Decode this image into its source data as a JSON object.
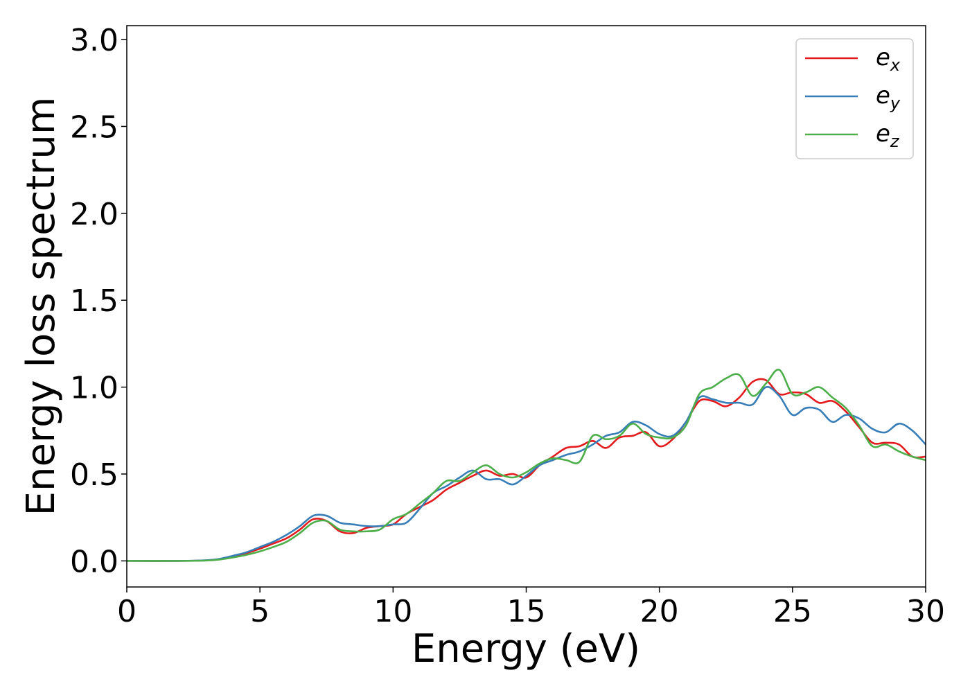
{
  "chart_data": {
    "type": "line",
    "xlabel": "Energy (eV)",
    "ylabel": "Energy loss spectrum",
    "xlim": [
      0,
      30
    ],
    "ylim": [
      -0.15,
      3.08
    ],
    "xticks": [
      0,
      5,
      10,
      15,
      20,
      25,
      30
    ],
    "xtick_labels": [
      "0",
      "5",
      "10",
      "15",
      "20",
      "25",
      "30"
    ],
    "yticks": [
      0.0,
      0.5,
      1.0,
      1.5,
      2.0,
      2.5,
      3.0
    ],
    "ytick_labels": [
      "0.0",
      "0.5",
      "1.0",
      "1.5",
      "2.0",
      "2.5",
      "3.0"
    ],
    "grid": false,
    "legend_position": "top-right",
    "series": [
      {
        "name": "e",
        "subscript": "x",
        "color": "#e41a1c",
        "x": [
          0,
          2,
          3,
          3.5,
          4,
          4.5,
          5,
          5.5,
          6,
          6.5,
          7,
          7.5,
          8,
          8.5,
          9,
          9.5,
          10,
          10.5,
          11,
          11.5,
          12,
          12.5,
          13,
          13.5,
          14,
          14.5,
          15,
          15.5,
          16,
          16.5,
          17,
          17.5,
          18,
          18.5,
          19,
          19.5,
          20,
          20.5,
          21,
          21.5,
          22,
          22.5,
          23,
          23.5,
          24,
          24.5,
          25,
          25.5,
          26,
          26.5,
          27,
          27.5,
          28,
          28.5,
          29,
          29.5,
          30
        ],
        "values": [
          0.0,
          0.0,
          0.003,
          0.01,
          0.025,
          0.045,
          0.07,
          0.1,
          0.13,
          0.18,
          0.24,
          0.23,
          0.17,
          0.16,
          0.19,
          0.2,
          0.21,
          0.27,
          0.31,
          0.35,
          0.41,
          0.45,
          0.49,
          0.52,
          0.49,
          0.5,
          0.48,
          0.55,
          0.6,
          0.65,
          0.66,
          0.69,
          0.65,
          0.71,
          0.72,
          0.74,
          0.66,
          0.7,
          0.8,
          0.92,
          0.92,
          0.89,
          0.94,
          1.03,
          1.04,
          0.96,
          0.97,
          0.96,
          0.91,
          0.92,
          0.86,
          0.77,
          0.68,
          0.68,
          0.67,
          0.6,
          0.6
        ]
      },
      {
        "name": "e",
        "subscript": "y",
        "color": "#377eb8",
        "x": [
          0,
          2,
          3,
          3.5,
          4,
          4.5,
          5,
          5.5,
          6,
          6.5,
          7,
          7.5,
          8,
          8.5,
          9,
          9.5,
          10,
          10.5,
          11,
          11.5,
          12,
          12.5,
          13,
          13.5,
          14,
          14.5,
          15,
          15.5,
          16,
          16.5,
          17,
          17.5,
          18,
          18.5,
          19,
          19.5,
          20,
          20.5,
          21,
          21.5,
          22,
          22.5,
          23,
          23.5,
          24,
          24.5,
          25,
          25.5,
          26,
          26.5,
          27,
          27.5,
          28,
          28.5,
          29,
          29.5,
          30
        ],
        "values": [
          0.0,
          0.0,
          0.004,
          0.012,
          0.03,
          0.05,
          0.08,
          0.11,
          0.15,
          0.2,
          0.26,
          0.26,
          0.22,
          0.21,
          0.2,
          0.2,
          0.21,
          0.22,
          0.3,
          0.39,
          0.43,
          0.48,
          0.52,
          0.47,
          0.47,
          0.44,
          0.49,
          0.55,
          0.58,
          0.61,
          0.63,
          0.67,
          0.72,
          0.74,
          0.8,
          0.78,
          0.73,
          0.72,
          0.8,
          0.94,
          0.93,
          0.91,
          0.91,
          0.9,
          1.0,
          0.95,
          0.84,
          0.88,
          0.87,
          0.8,
          0.84,
          0.82,
          0.76,
          0.74,
          0.79,
          0.75,
          0.67
        ]
      },
      {
        "name": "e",
        "subscript": "z",
        "color": "#4daf4a",
        "x": [
          0,
          2,
          3,
          3.5,
          4,
          4.5,
          5,
          5.5,
          6,
          6.5,
          7,
          7.5,
          8,
          8.5,
          9,
          9.5,
          10,
          10.5,
          11,
          11.5,
          12,
          12.5,
          13,
          13.5,
          14,
          14.5,
          15,
          15.5,
          16,
          16.5,
          17,
          17.5,
          18,
          18.5,
          19,
          19.5,
          20,
          20.5,
          21,
          21.5,
          22,
          22.5,
          23,
          23.5,
          24,
          24.5,
          25,
          25.5,
          26,
          26.5,
          27,
          27.5,
          28,
          28.5,
          29,
          29.5,
          30
        ],
        "values": [
          0.0,
          0.0,
          0.002,
          0.008,
          0.02,
          0.035,
          0.055,
          0.08,
          0.11,
          0.16,
          0.22,
          0.23,
          0.18,
          0.17,
          0.17,
          0.18,
          0.24,
          0.27,
          0.33,
          0.39,
          0.46,
          0.46,
          0.51,
          0.55,
          0.5,
          0.48,
          0.51,
          0.56,
          0.59,
          0.58,
          0.57,
          0.72,
          0.7,
          0.72,
          0.79,
          0.73,
          0.71,
          0.71,
          0.78,
          0.96,
          1.0,
          1.05,
          1.07,
          0.95,
          1.02,
          1.1,
          0.96,
          0.97,
          1.0,
          0.94,
          0.88,
          0.78,
          0.66,
          0.67,
          0.63,
          0.6,
          0.58
        ]
      }
    ]
  }
}
